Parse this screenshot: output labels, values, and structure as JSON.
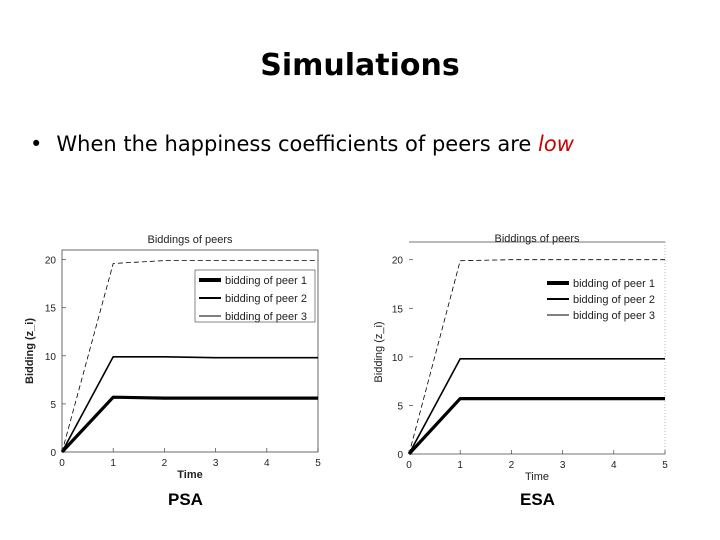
{
  "slide": {
    "title": "Simulations",
    "bullet": "•",
    "text_main": "When the happiness coefficients of peers are ",
    "text_highlight": "low",
    "highlight_color": "#cc0000"
  },
  "captions": {
    "left": "PSA",
    "right": "ESA"
  },
  "chart_data": [
    {
      "type": "line",
      "title": "Biddings of peers",
      "xlabel": "Time",
      "ylabel": "Bidding (z_i)",
      "xlim": [
        0,
        5
      ],
      "ylim": [
        0,
        21
      ],
      "xticks": [
        0,
        1,
        2,
        3,
        4,
        5
      ],
      "yticks": [
        0,
        5,
        10,
        15,
        20
      ],
      "grid": false,
      "legend_position": "top-right",
      "series": [
        {
          "name": "bidding of peer 1",
          "style": "thick",
          "x": [
            0,
            1,
            2,
            3,
            4,
            5
          ],
          "y": [
            0,
            5.7,
            5.6,
            5.6,
            5.6,
            5.6
          ]
        },
        {
          "name": "bidding of peer 2",
          "style": "medium",
          "x": [
            0,
            1,
            2,
            3,
            4,
            5
          ],
          "y": [
            0,
            9.9,
            9.9,
            9.8,
            9.8,
            9.8
          ]
        },
        {
          "name": "bidding of peer 3",
          "style": "thin-dashed",
          "x": [
            0,
            1,
            2,
            3,
            4,
            5
          ],
          "y": [
            0,
            19.6,
            19.9,
            19.9,
            19.9,
            19.9
          ]
        }
      ]
    },
    {
      "type": "line",
      "title": "Biddings of peers",
      "xlabel": "Time",
      "ylabel": "Bidding (z_i)",
      "xlim": [
        0,
        5
      ],
      "ylim": [
        0,
        21
      ],
      "xticks": [
        0,
        1,
        2,
        3,
        4,
        5
      ],
      "yticks": [
        0,
        5,
        10,
        15,
        20
      ],
      "grid": false,
      "legend_position": "top-right",
      "series": [
        {
          "name": "bidding of peer 1",
          "style": "thick",
          "x": [
            0,
            1,
            2,
            3,
            4,
            5
          ],
          "y": [
            0,
            5.7,
            5.7,
            5.7,
            5.7,
            5.7
          ]
        },
        {
          "name": "bidding of peer 2",
          "style": "medium",
          "x": [
            0,
            1,
            2,
            3,
            4,
            5
          ],
          "y": [
            0,
            9.8,
            9.8,
            9.8,
            9.8,
            9.8
          ]
        },
        {
          "name": "bidding of peer 3",
          "style": "thin-dashed",
          "x": [
            0,
            1,
            2,
            3,
            4,
            5
          ],
          "y": [
            0,
            19.9,
            20.0,
            20.0,
            20.0,
            20.0
          ]
        }
      ]
    }
  ]
}
